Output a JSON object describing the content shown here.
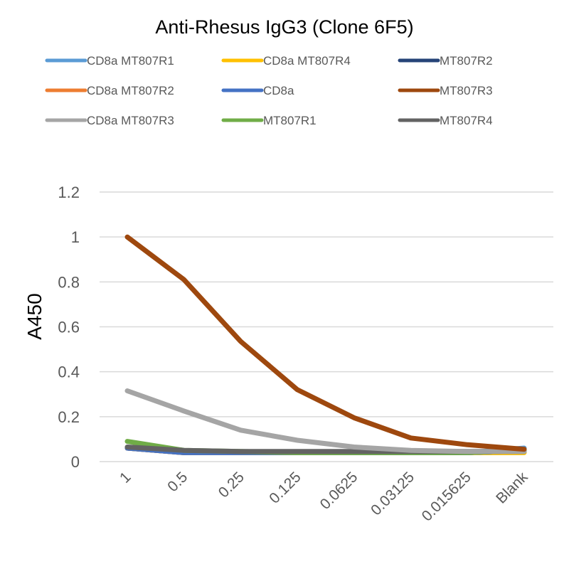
{
  "chart_data": {
    "type": "line",
    "title": "Anti-Rhesus IgG3 (Clone 6F5)",
    "xlabel": "",
    "ylabel": "A450",
    "categories": [
      "1",
      "0.5",
      "0.25",
      "0.125",
      "0.0625",
      "0.03125",
      "0.015625",
      "Blank"
    ],
    "yticks": [
      "0",
      "0.2",
      "0.4",
      "0.6",
      "0.8",
      "1",
      "1.2"
    ],
    "ylim": [
      0,
      1.2
    ],
    "grid": true,
    "legend_position": "top",
    "series": [
      {
        "name": "CD8a MT807R1",
        "color": "#5B9BD5",
        "values": [
          0.06,
          0.04,
          0.04,
          0.04,
          0.04,
          0.04,
          0.04,
          0.06
        ]
      },
      {
        "name": "CD8a MT807R4",
        "color": "#FFC000",
        "values": [
          0.06,
          0.04,
          0.04,
          0.04,
          0.04,
          0.04,
          0.04,
          0.04
        ]
      },
      {
        "name": "MT807R2",
        "color": "#264478",
        "values": [
          0.06,
          0.04,
          0.04,
          0.04,
          0.04,
          0.04,
          0.04,
          0.05
        ]
      },
      {
        "name": "CD8a MT807R2",
        "color": "#ED7D31",
        "values": [
          0.06,
          0.04,
          0.04,
          0.04,
          0.04,
          0.04,
          0.04,
          0.05
        ]
      },
      {
        "name": "CD8a",
        "color": "#4472C4",
        "values": [
          0.06,
          0.04,
          0.04,
          0.04,
          0.04,
          0.04,
          0.04,
          0.05
        ]
      },
      {
        "name": "MT807R3",
        "color": "#9E480E",
        "values": [
          1.0,
          0.81,
          0.535,
          0.32,
          0.195,
          0.105,
          0.075,
          0.055
        ]
      },
      {
        "name": "CD8a MT807R3",
        "color": "#A5A5A5",
        "values": [
          0.315,
          0.225,
          0.14,
          0.095,
          0.065,
          0.05,
          0.045,
          0.045
        ]
      },
      {
        "name": "MT807R1",
        "color": "#70AD47",
        "values": [
          0.09,
          0.05,
          0.045,
          0.04,
          0.04,
          0.04,
          0.04,
          0.05
        ]
      },
      {
        "name": "MT807R4",
        "color": "#636363",
        "values": [
          0.065,
          0.05,
          0.045,
          0.045,
          0.045,
          0.045,
          0.045,
          0.045
        ]
      }
    ],
    "draw_order": [
      "CD8a MT807R1",
      "CD8a MT807R4",
      "MT807R2",
      "CD8a MT807R2",
      "CD8a",
      "MT807R1",
      "MT807R4",
      "CD8a MT807R3",
      "MT807R3"
    ]
  }
}
